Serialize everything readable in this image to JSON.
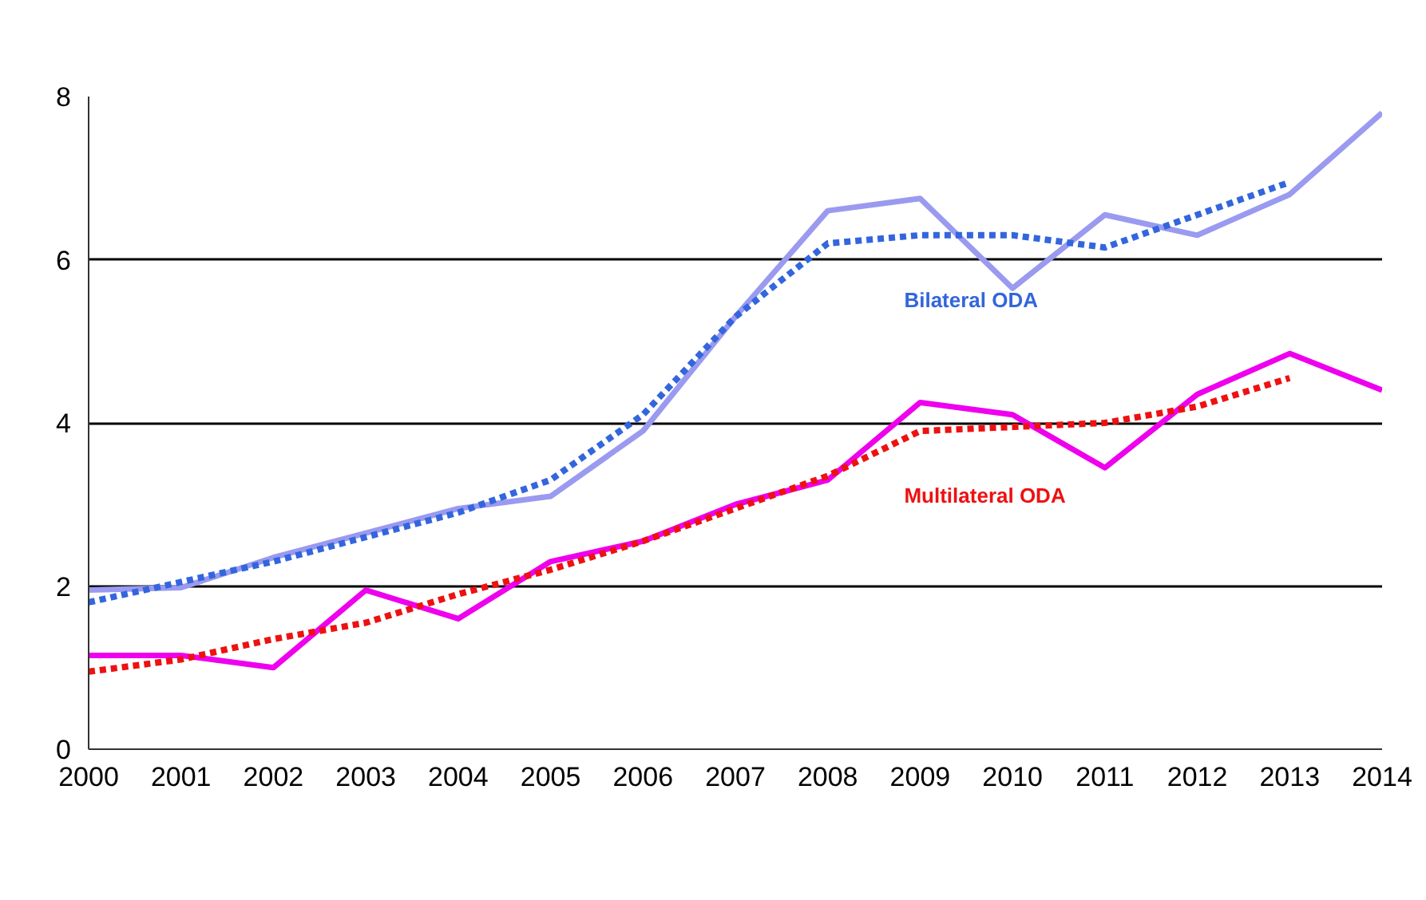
{
  "chart_data": {
    "type": "line",
    "x": [
      2000,
      2001,
      2002,
      2003,
      2004,
      2005,
      2006,
      2007,
      2008,
      2009,
      2010,
      2011,
      2012,
      2013,
      2014
    ],
    "xlim": [
      2000,
      2014
    ],
    "xticks": [
      2000,
      2001,
      2002,
      2003,
      2004,
      2005,
      2006,
      2007,
      2008,
      2009,
      2010,
      2011,
      2012,
      2013,
      2014
    ],
    "ylim": [
      0,
      8
    ],
    "yticks": [
      0,
      2,
      4,
      6,
      8
    ],
    "grid": "y",
    "marker": "none",
    "series": [
      {
        "color": "#9a9af0",
        "line_style": "solid",
        "values": [
          1.95,
          1.98,
          2.35,
          2.65,
          2.95,
          3.1,
          3.9,
          5.3,
          6.6,
          6.75,
          5.65,
          6.55,
          6.3,
          6.8,
          7.8
        ]
      },
      {
        "name": "Bilateral ODA",
        "color": "#3366dd",
        "line_style": "dashed",
        "values": [
          1.8,
          2.05,
          2.3,
          2.6,
          2.9,
          3.3,
          4.1,
          5.3,
          6.2,
          6.3,
          6.3,
          6.15,
          6.55,
          6.95,
          null
        ]
      },
      {
        "color": "#ee00ee",
        "line_style": "solid",
        "values": [
          1.15,
          1.15,
          1.0,
          1.95,
          1.6,
          2.3,
          2.55,
          3.0,
          3.3,
          4.25,
          4.1,
          3.45,
          4.35,
          4.85,
          4.4
        ]
      },
      {
        "name": "Multilateral ODA",
        "color": "#ee1111",
        "line_style": "dashed",
        "values": [
          0.95,
          1.1,
          1.35,
          1.55,
          1.9,
          2.2,
          2.55,
          2.95,
          3.35,
          3.9,
          3.95,
          4.0,
          4.2,
          4.55,
          null
        ]
      }
    ]
  }
}
